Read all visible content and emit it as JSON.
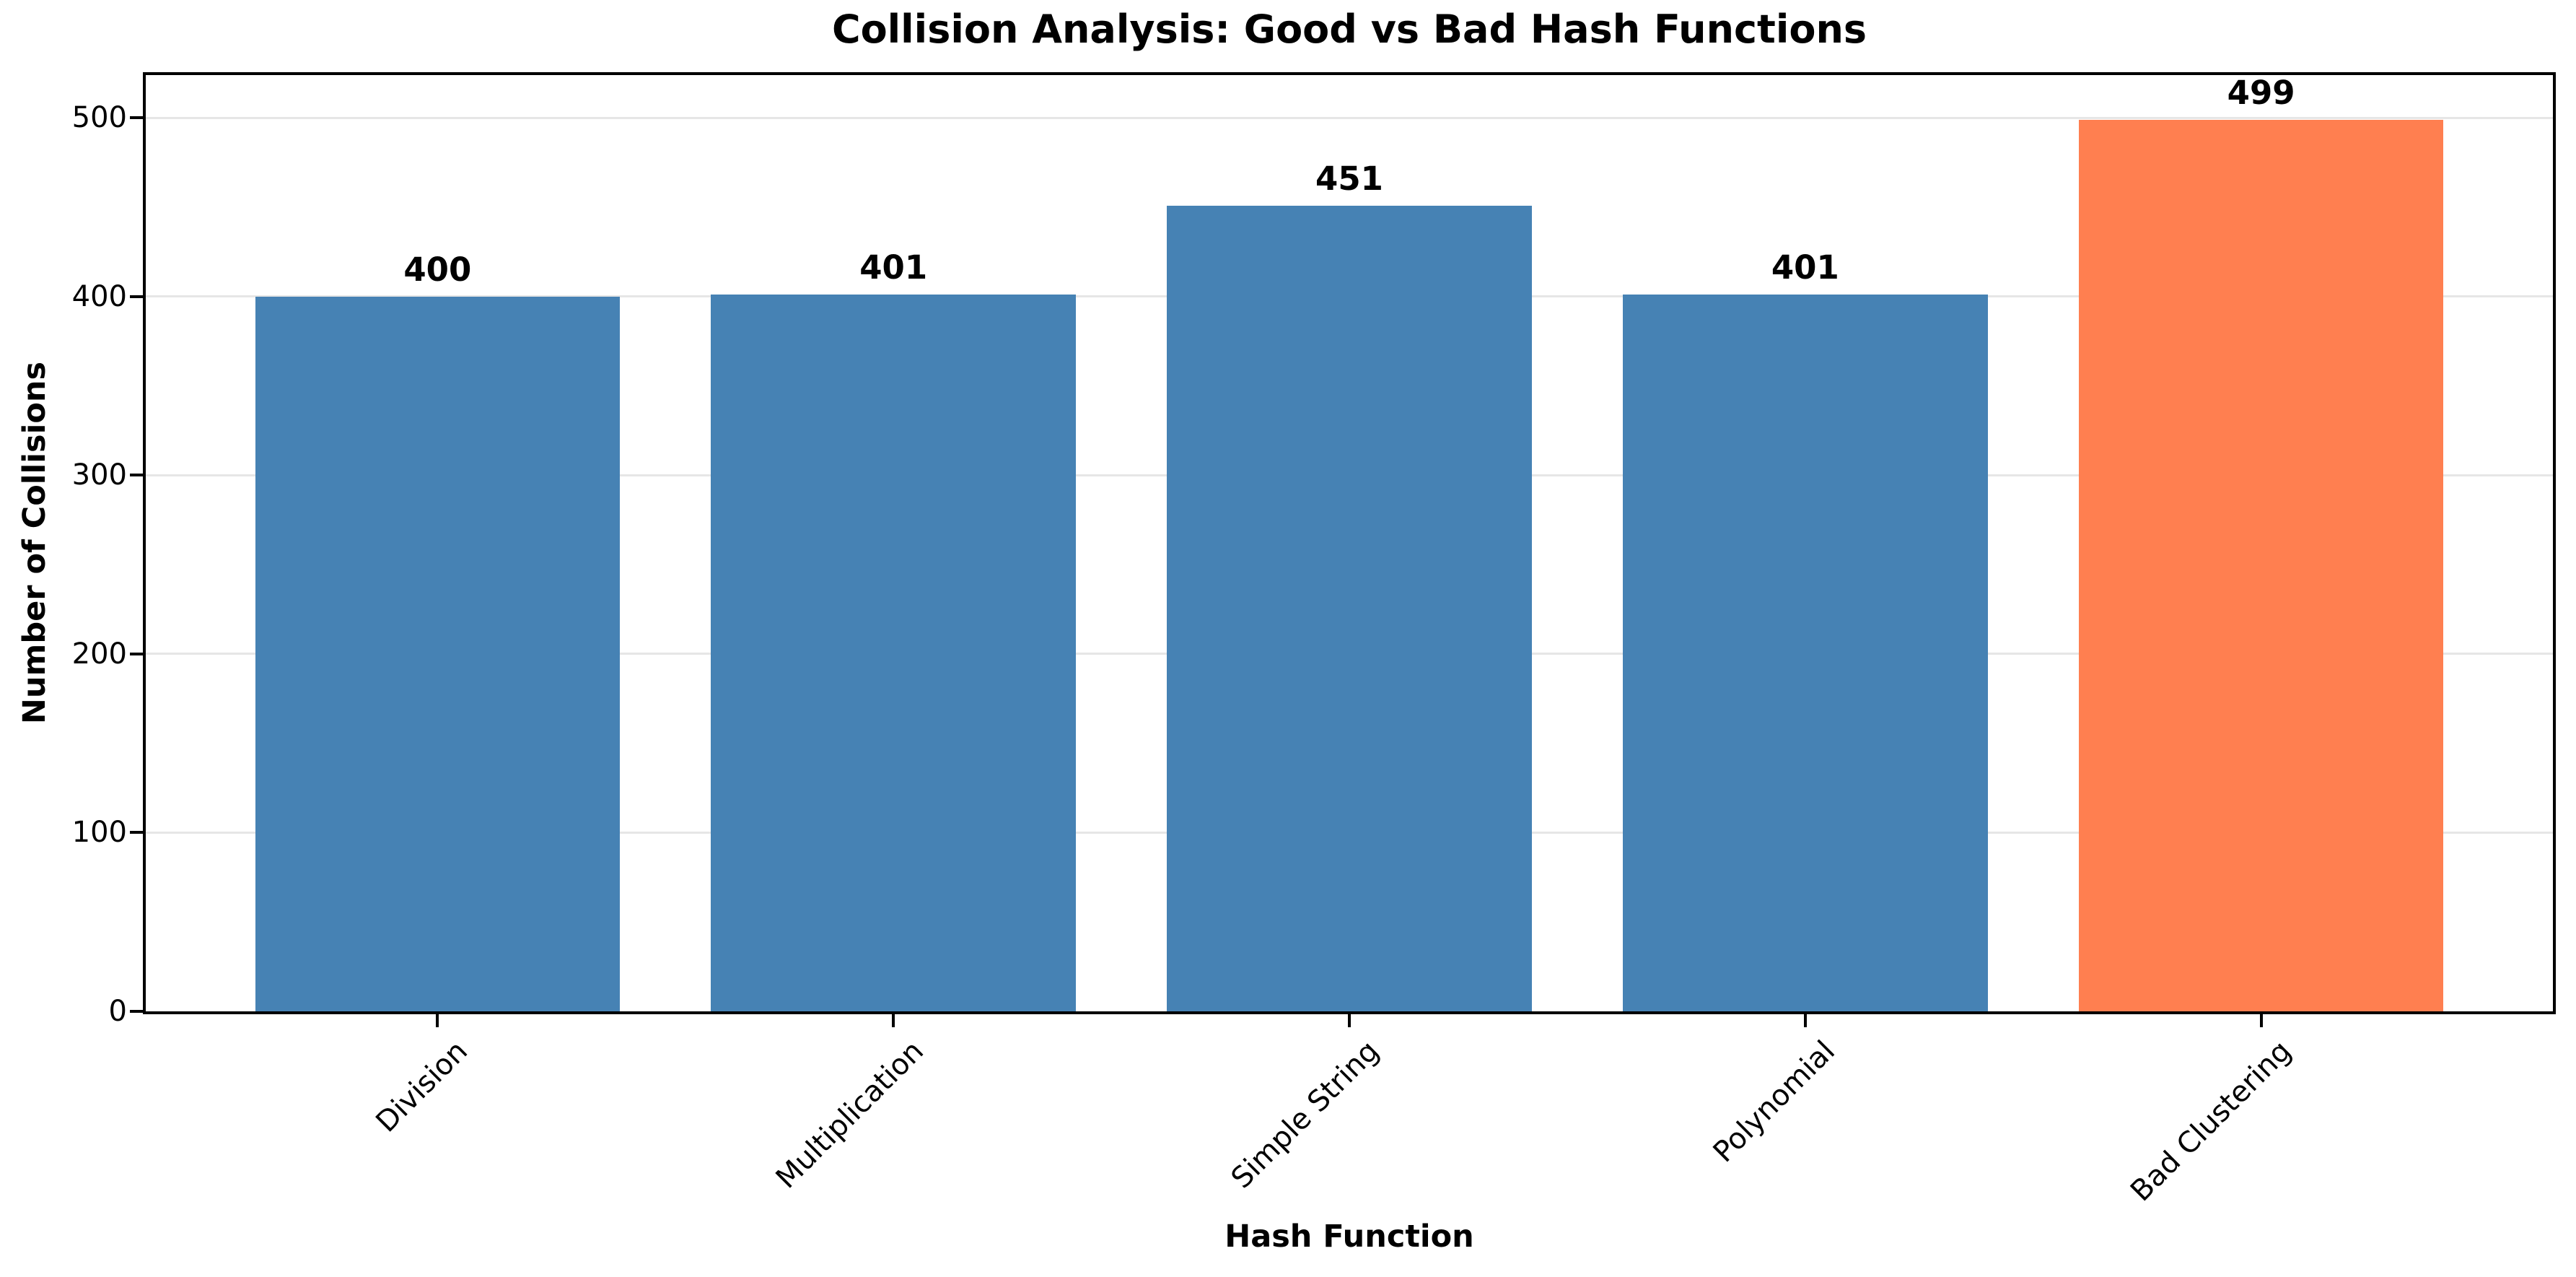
{
  "title": "Collision Analysis: Good vs Bad Hash Functions",
  "chart_data": {
    "type": "bar",
    "title": "Collision Analysis: Good vs Bad Hash Functions",
    "xlabel": "Hash Function",
    "ylabel": "Number of Collisions",
    "categories": [
      "Division",
      "Multiplication",
      "Simple String",
      "Polynomial",
      "Bad Clustering"
    ],
    "values": [
      400,
      401,
      451,
      401,
      499
    ],
    "value_labels": [
      "400",
      "401",
      "451",
      "401",
      "499"
    ],
    "bar_colors": [
      "#4682B4",
      "#4682B4",
      "#4682B4",
      "#4682B4",
      "#FF7F50"
    ],
    "good_hash_color": "#4682B4",
    "bad_hash_color": "#FF7F50",
    "yticks": [
      0,
      100,
      200,
      300,
      400,
      500
    ],
    "ylim": [
      0,
      524
    ],
    "xtick_rotation": 45,
    "grid": "horizontal",
    "grid_color": "#e6e6e6",
    "spine_color": "#000000",
    "background_color": "#ffffff",
    "legend": "none",
    "bar_width_fraction": 0.8
  }
}
